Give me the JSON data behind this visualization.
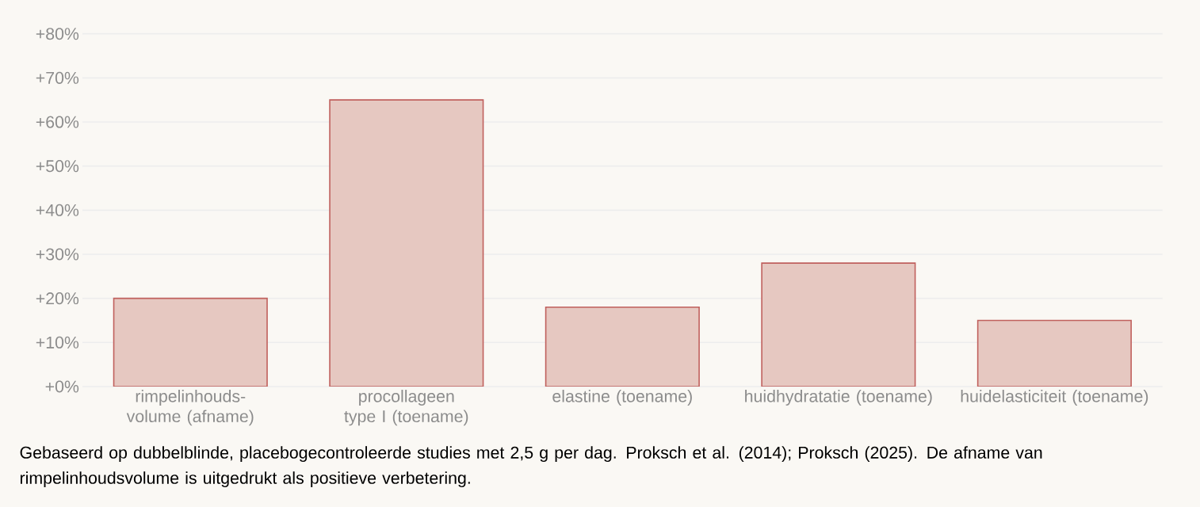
{
  "chart_data": {
    "type": "bar",
    "categories": [
      "rimpelinhouds- volume (afname)",
      "procollageen type I (toename)",
      "elastine (toename)",
      "huidhydratatie (toename)",
      "huidelasticiteit (toename)"
    ],
    "values": [
      20,
      65,
      18,
      28,
      15
    ],
    "color": "#e6c8c1",
    "ylim": [
      0,
      80
    ],
    "yticks": [
      {
        "value": 0,
        "label": "+0%"
      },
      {
        "value": 10,
        "label": "+10%"
      },
      {
        "value": 20,
        "label": "+20%"
      },
      {
        "value": 30,
        "label": "+30%"
      },
      {
        "value": 40,
        "label": "+40%"
      },
      {
        "value": 50,
        "label": "+50%"
      },
      {
        "value": 60,
        "label": "+60%"
      },
      {
        "value": 70,
        "label": "+70%"
      },
      {
        "value": 80,
        "label": "+80%"
      }
    ],
    "grid": "y",
    "annotations": [
      "Gebaseerd op dubbelblinde, placebogecontroleerde studies met 2,5 g per dag. Proksch et al. (2014); Proksch (2025). De afname van rimpelinhoudsvolume is uitgedrukt als positieve verbetering."
    ]
  }
}
